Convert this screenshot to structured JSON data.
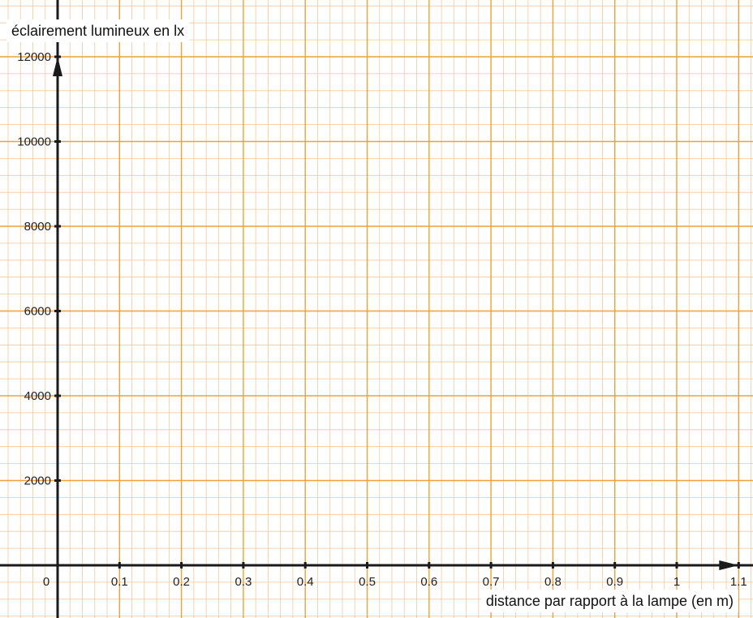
{
  "chart_data": {
    "type": "scatter",
    "title": "",
    "xlabel": "distance par rapport à la lampe (en m)",
    "ylabel": "éclairement lumineux en lx",
    "x_ticks": [
      "0",
      "0.1",
      "0.2",
      "0.3",
      "0.4",
      "0.5",
      "0.6",
      "0.7",
      "0.8",
      "0.9",
      "1",
      "1.1"
    ],
    "y_ticks": [
      "2000",
      "4000",
      "6000",
      "8000",
      "10000",
      "12000"
    ],
    "xlim": [
      0,
      1.1
    ],
    "ylim": [
      0,
      12000
    ],
    "x_major_step": 0.1,
    "y_major_step": 2000,
    "minor_subdivisions": 5,
    "grid": true,
    "series": [],
    "colors": {
      "major_grid": "#f0a039",
      "minor_grid": "#f6c79a",
      "axis": "#1a1a1a"
    }
  }
}
